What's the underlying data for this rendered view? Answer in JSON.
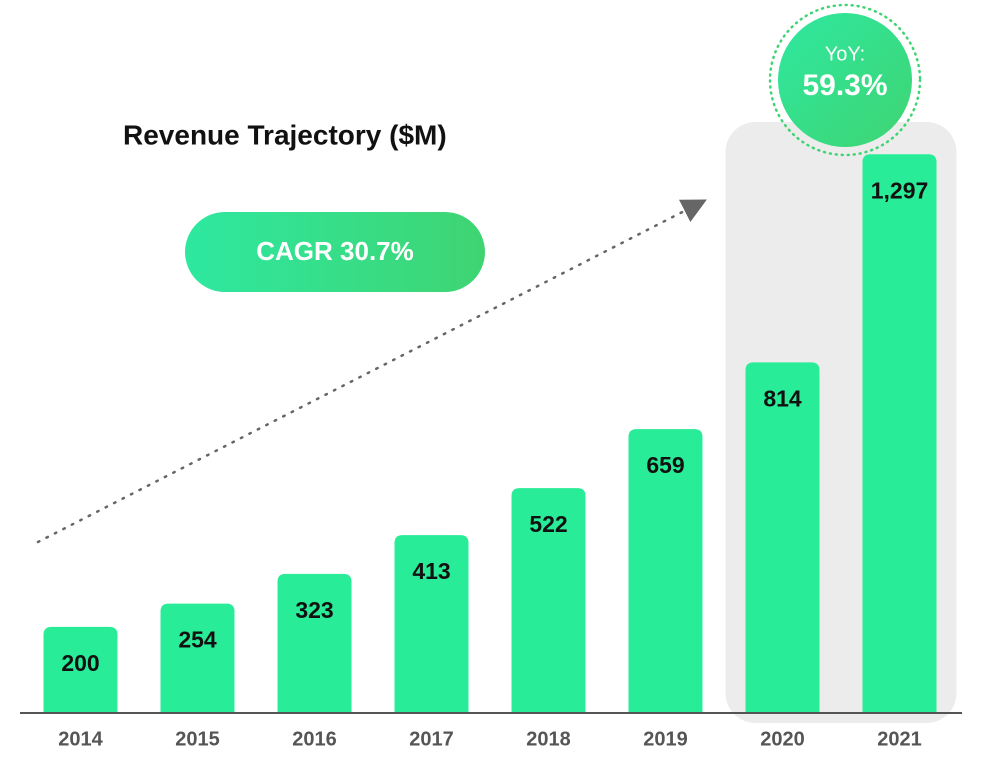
{
  "chart_data": {
    "type": "bar",
    "title": "Revenue Trajectory ($M)",
    "categories": [
      "2014",
      "2015",
      "2016",
      "2017",
      "2018",
      "2019",
      "2020",
      "2021"
    ],
    "values": [
      200,
      254,
      323,
      413,
      522,
      659,
      814,
      1297
    ],
    "value_labels": [
      "200",
      "254",
      "323",
      "413",
      "522",
      "659",
      "814",
      "1,297"
    ],
    "color": "#28ec97",
    "ylim": [
      0,
      1300
    ],
    "annotations": {
      "cagr": "CAGR 30.7%",
      "yoy_label": "YoY:",
      "yoy_value": "59.3%"
    }
  }
}
